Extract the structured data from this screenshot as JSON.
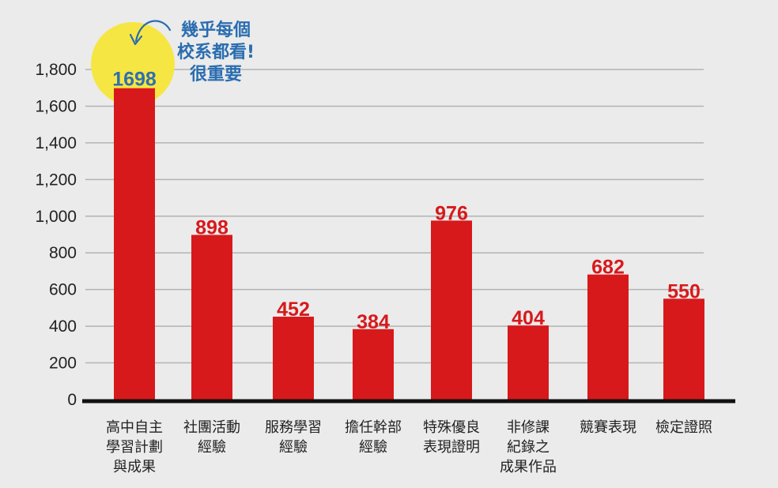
{
  "chart_data": {
    "type": "bar",
    "categories": [
      [
        "高中自主",
        "學習計劃",
        "與成果"
      ],
      [
        "社團活動",
        "經驗"
      ],
      [
        "服務學習",
        "經驗"
      ],
      [
        "擔任幹部",
        "經驗"
      ],
      [
        "特殊優良",
        "表現證明"
      ],
      [
        "非修課",
        "紀錄之",
        "成果作品"
      ],
      [
        "競賽表現"
      ],
      [
        "檢定證照"
      ]
    ],
    "values": [
      1698,
      898,
      452,
      384,
      976,
      404,
      682,
      550
    ],
    "value_labels": [
      "1698",
      "898",
      "452",
      "384",
      "976",
      "404",
      "682",
      "550"
    ],
    "y_ticks": [
      0,
      200,
      400,
      600,
      800,
      1000,
      1200,
      1400,
      1600,
      1800
    ],
    "y_tick_labels": [
      "0",
      "200",
      "400",
      "600",
      "800",
      "1,000",
      "1,200",
      "1,400",
      "1,600",
      "1,800"
    ],
    "ylim": [
      0,
      1800
    ],
    "grid": true,
    "title": "",
    "xlabel": "",
    "ylabel": "",
    "annotation": {
      "lines": [
        "幾乎每個",
        "校系都看!",
        "很重要"
      ],
      "target_category_index": 0
    }
  },
  "colors": {
    "background": "#ebebeb",
    "bar": "#d7191b",
    "data_label": "#d7191b",
    "highlight_circle": "#f6e643",
    "highlight_label": "#2f6fae",
    "annotation_text": "#2a6db0",
    "grid": "#b3b3b3",
    "axis": "#111111"
  }
}
